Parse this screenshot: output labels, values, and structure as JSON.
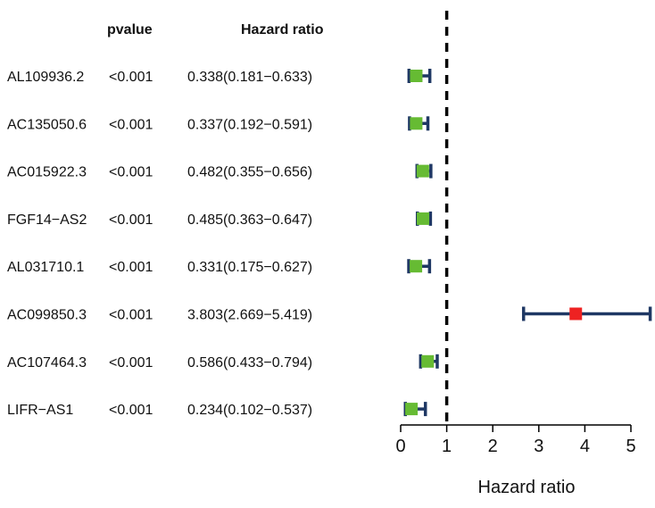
{
  "chart_data": {
    "type": "forest",
    "columns": {
      "pvalue": "pvalue",
      "hazard_ratio": "Hazard ratio"
    },
    "rows": [
      {
        "gene": "AL109936.2",
        "pvalue": "<0.001",
        "hr_text": "0.338(0.181−0.633)",
        "hr": 0.338,
        "lower": 0.181,
        "upper": 0.633
      },
      {
        "gene": "AC135050.6",
        "pvalue": "<0.001",
        "hr_text": "0.337(0.192−0.591)",
        "hr": 0.337,
        "lower": 0.192,
        "upper": 0.591
      },
      {
        "gene": "AC015922.3",
        "pvalue": "<0.001",
        "hr_text": "0.482(0.355−0.656)",
        "hr": 0.482,
        "lower": 0.355,
        "upper": 0.656
      },
      {
        "gene": "FGF14−AS2",
        "pvalue": "<0.001",
        "hr_text": "0.485(0.363−0.647)",
        "hr": 0.485,
        "lower": 0.363,
        "upper": 0.647
      },
      {
        "gene": "AL031710.1",
        "pvalue": "<0.001",
        "hr_text": "0.331(0.175−0.627)",
        "hr": 0.331,
        "lower": 0.175,
        "upper": 0.627
      },
      {
        "gene": "AC099850.3",
        "pvalue": "<0.001",
        "hr_text": "3.803(2.669−5.419)",
        "hr": 3.803,
        "lower": 2.669,
        "upper": 5.419
      },
      {
        "gene": "AC107464.3",
        "pvalue": "<0.001",
        "hr_text": "0.586(0.433−0.794)",
        "hr": 0.586,
        "lower": 0.433,
        "upper": 0.794
      },
      {
        "gene": "LIFR−AS1",
        "pvalue": "<0.001",
        "hr_text": "0.234(0.102−0.537)",
        "hr": 0.234,
        "lower": 0.102,
        "upper": 0.537
      }
    ],
    "xlabel": "Hazard ratio",
    "xlim": [
      0,
      5
    ],
    "xticks": [
      0,
      1,
      2,
      3,
      4,
      5
    ],
    "reference_line": 1,
    "colors": {
      "protective": "#66bb33",
      "risk": "#ee2222",
      "ci": "#1f3864",
      "reference": "#000000"
    }
  }
}
